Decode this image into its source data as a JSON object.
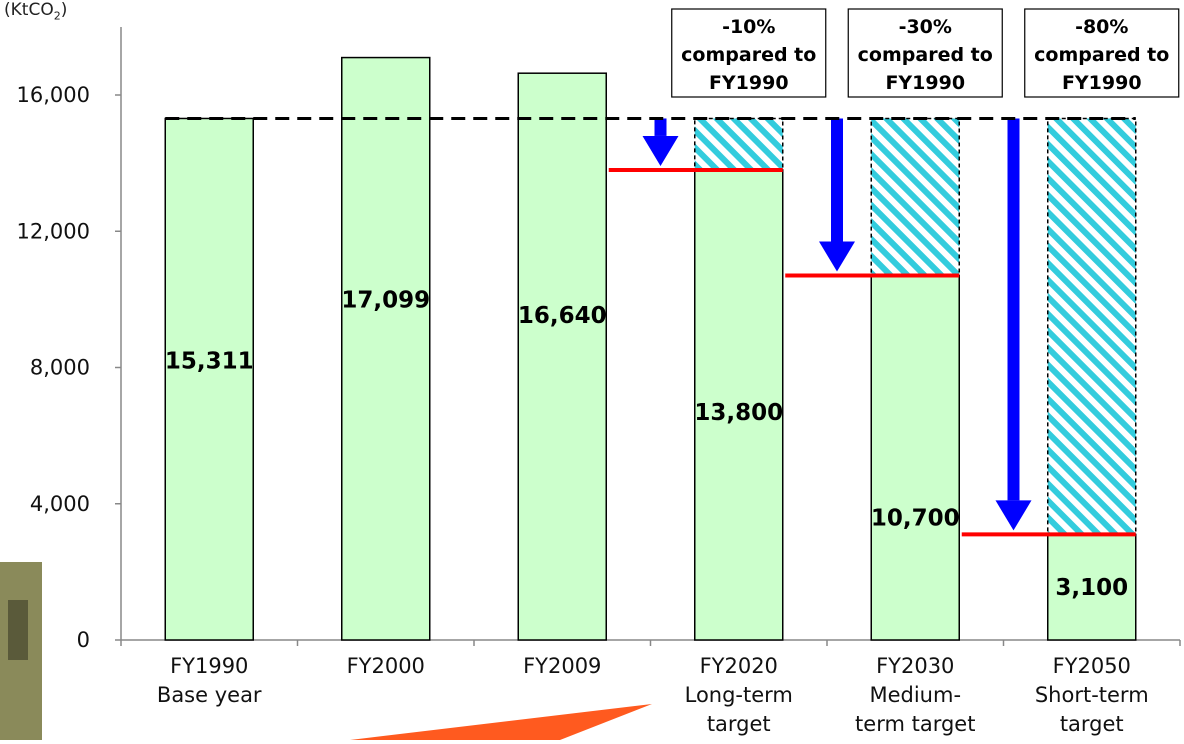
{
  "chart_data": {
    "type": "bar",
    "unit_prefix": "(KtCO",
    "unit_sub": "2",
    "unit_suffix": ")",
    "ylim": [
      0,
      17500
    ],
    "yticks": [
      0,
      4000,
      8000,
      12000,
      16000
    ],
    "ytick_labels": [
      "0",
      "4,000",
      "8,000",
      "12,000",
      "16,000"
    ],
    "baseline_value": 15311,
    "categories": [
      {
        "lines": [
          "FY1990",
          "Base year"
        ],
        "value": 15311,
        "value_label": "15,311",
        "is_target": false
      },
      {
        "lines": [
          "FY2000"
        ],
        "value": 17099,
        "value_label": "17,099",
        "is_target": false
      },
      {
        "lines": [
          "FY2009"
        ],
        "value": 16640,
        "value_label": "16,640",
        "is_target": false
      },
      {
        "lines": [
          "FY2020",
          "Long-term",
          "target"
        ],
        "value": 13800,
        "value_label": "13,800",
        "is_target": true,
        "reduction_box": [
          "-10%",
          "compared to",
          "FY1990"
        ]
      },
      {
        "lines": [
          "FY2030",
          "Medium-",
          "term target"
        ],
        "value": 10700,
        "value_label": "10,700",
        "is_target": true,
        "reduction_box": [
          "-30%",
          "compared to",
          "FY1990"
        ]
      },
      {
        "lines": [
          "FY2050",
          "Short-term",
          "target"
        ],
        "value": 3100,
        "value_label": "3,100",
        "is_target": true,
        "reduction_box": [
          "-80%",
          "compared to",
          "FY1990"
        ]
      }
    ],
    "colors": {
      "bar_fill": "#ccffcc",
      "bar_stroke": "#000000",
      "hatch_stripe": "#33ccdd",
      "target_line": "#ff0000",
      "arrow": "#0000ff",
      "baseline": "#000000",
      "decor_arrow": "#ff5a1f"
    }
  }
}
